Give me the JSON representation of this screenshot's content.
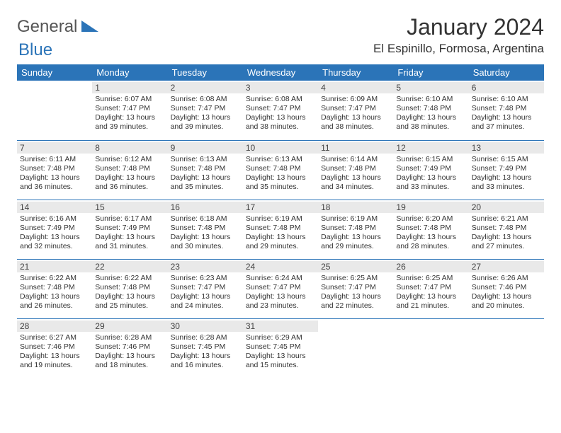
{
  "logo": {
    "primary": "General",
    "secondary": "Blue"
  },
  "title": "January 2024",
  "location": "El Espinillo, Formosa, Argentina",
  "colors": {
    "header_bg": "#2b74b8",
    "header_text": "#ffffff",
    "daynum_bg": "#e9e9e9",
    "border": "#2b74b8",
    "text": "#333333"
  },
  "day_headers": [
    "Sunday",
    "Monday",
    "Tuesday",
    "Wednesday",
    "Thursday",
    "Friday",
    "Saturday"
  ],
  "weeks": [
    [
      {
        "empty": true
      },
      {
        "day": "1",
        "sunrise": "Sunrise: 6:07 AM",
        "sunset": "Sunset: 7:47 PM",
        "daylight1": "Daylight: 13 hours",
        "daylight2": "and 39 minutes."
      },
      {
        "day": "2",
        "sunrise": "Sunrise: 6:08 AM",
        "sunset": "Sunset: 7:47 PM",
        "daylight1": "Daylight: 13 hours",
        "daylight2": "and 39 minutes."
      },
      {
        "day": "3",
        "sunrise": "Sunrise: 6:08 AM",
        "sunset": "Sunset: 7:47 PM",
        "daylight1": "Daylight: 13 hours",
        "daylight2": "and 38 minutes."
      },
      {
        "day": "4",
        "sunrise": "Sunrise: 6:09 AM",
        "sunset": "Sunset: 7:47 PM",
        "daylight1": "Daylight: 13 hours",
        "daylight2": "and 38 minutes."
      },
      {
        "day": "5",
        "sunrise": "Sunrise: 6:10 AM",
        "sunset": "Sunset: 7:48 PM",
        "daylight1": "Daylight: 13 hours",
        "daylight2": "and 38 minutes."
      },
      {
        "day": "6",
        "sunrise": "Sunrise: 6:10 AM",
        "sunset": "Sunset: 7:48 PM",
        "daylight1": "Daylight: 13 hours",
        "daylight2": "and 37 minutes."
      }
    ],
    [
      {
        "day": "7",
        "sunrise": "Sunrise: 6:11 AM",
        "sunset": "Sunset: 7:48 PM",
        "daylight1": "Daylight: 13 hours",
        "daylight2": "and 36 minutes."
      },
      {
        "day": "8",
        "sunrise": "Sunrise: 6:12 AM",
        "sunset": "Sunset: 7:48 PM",
        "daylight1": "Daylight: 13 hours",
        "daylight2": "and 36 minutes."
      },
      {
        "day": "9",
        "sunrise": "Sunrise: 6:13 AM",
        "sunset": "Sunset: 7:48 PM",
        "daylight1": "Daylight: 13 hours",
        "daylight2": "and 35 minutes."
      },
      {
        "day": "10",
        "sunrise": "Sunrise: 6:13 AM",
        "sunset": "Sunset: 7:48 PM",
        "daylight1": "Daylight: 13 hours",
        "daylight2": "and 35 minutes."
      },
      {
        "day": "11",
        "sunrise": "Sunrise: 6:14 AM",
        "sunset": "Sunset: 7:48 PM",
        "daylight1": "Daylight: 13 hours",
        "daylight2": "and 34 minutes."
      },
      {
        "day": "12",
        "sunrise": "Sunrise: 6:15 AM",
        "sunset": "Sunset: 7:49 PM",
        "daylight1": "Daylight: 13 hours",
        "daylight2": "and 33 minutes."
      },
      {
        "day": "13",
        "sunrise": "Sunrise: 6:15 AM",
        "sunset": "Sunset: 7:49 PM",
        "daylight1": "Daylight: 13 hours",
        "daylight2": "and 33 minutes."
      }
    ],
    [
      {
        "day": "14",
        "sunrise": "Sunrise: 6:16 AM",
        "sunset": "Sunset: 7:49 PM",
        "daylight1": "Daylight: 13 hours",
        "daylight2": "and 32 minutes."
      },
      {
        "day": "15",
        "sunrise": "Sunrise: 6:17 AM",
        "sunset": "Sunset: 7:49 PM",
        "daylight1": "Daylight: 13 hours",
        "daylight2": "and 31 minutes."
      },
      {
        "day": "16",
        "sunrise": "Sunrise: 6:18 AM",
        "sunset": "Sunset: 7:48 PM",
        "daylight1": "Daylight: 13 hours",
        "daylight2": "and 30 minutes."
      },
      {
        "day": "17",
        "sunrise": "Sunrise: 6:19 AM",
        "sunset": "Sunset: 7:48 PM",
        "daylight1": "Daylight: 13 hours",
        "daylight2": "and 29 minutes."
      },
      {
        "day": "18",
        "sunrise": "Sunrise: 6:19 AM",
        "sunset": "Sunset: 7:48 PM",
        "daylight1": "Daylight: 13 hours",
        "daylight2": "and 29 minutes."
      },
      {
        "day": "19",
        "sunrise": "Sunrise: 6:20 AM",
        "sunset": "Sunset: 7:48 PM",
        "daylight1": "Daylight: 13 hours",
        "daylight2": "and 28 minutes."
      },
      {
        "day": "20",
        "sunrise": "Sunrise: 6:21 AM",
        "sunset": "Sunset: 7:48 PM",
        "daylight1": "Daylight: 13 hours",
        "daylight2": "and 27 minutes."
      }
    ],
    [
      {
        "day": "21",
        "sunrise": "Sunrise: 6:22 AM",
        "sunset": "Sunset: 7:48 PM",
        "daylight1": "Daylight: 13 hours",
        "daylight2": "and 26 minutes."
      },
      {
        "day": "22",
        "sunrise": "Sunrise: 6:22 AM",
        "sunset": "Sunset: 7:48 PM",
        "daylight1": "Daylight: 13 hours",
        "daylight2": "and 25 minutes."
      },
      {
        "day": "23",
        "sunrise": "Sunrise: 6:23 AM",
        "sunset": "Sunset: 7:47 PM",
        "daylight1": "Daylight: 13 hours",
        "daylight2": "and 24 minutes."
      },
      {
        "day": "24",
        "sunrise": "Sunrise: 6:24 AM",
        "sunset": "Sunset: 7:47 PM",
        "daylight1": "Daylight: 13 hours",
        "daylight2": "and 23 minutes."
      },
      {
        "day": "25",
        "sunrise": "Sunrise: 6:25 AM",
        "sunset": "Sunset: 7:47 PM",
        "daylight1": "Daylight: 13 hours",
        "daylight2": "and 22 minutes."
      },
      {
        "day": "26",
        "sunrise": "Sunrise: 6:25 AM",
        "sunset": "Sunset: 7:47 PM",
        "daylight1": "Daylight: 13 hours",
        "daylight2": "and 21 minutes."
      },
      {
        "day": "27",
        "sunrise": "Sunrise: 6:26 AM",
        "sunset": "Sunset: 7:46 PM",
        "daylight1": "Daylight: 13 hours",
        "daylight2": "and 20 minutes."
      }
    ],
    [
      {
        "day": "28",
        "sunrise": "Sunrise: 6:27 AM",
        "sunset": "Sunset: 7:46 PM",
        "daylight1": "Daylight: 13 hours",
        "daylight2": "and 19 minutes."
      },
      {
        "day": "29",
        "sunrise": "Sunrise: 6:28 AM",
        "sunset": "Sunset: 7:46 PM",
        "daylight1": "Daylight: 13 hours",
        "daylight2": "and 18 minutes."
      },
      {
        "day": "30",
        "sunrise": "Sunrise: 6:28 AM",
        "sunset": "Sunset: 7:45 PM",
        "daylight1": "Daylight: 13 hours",
        "daylight2": "and 16 minutes."
      },
      {
        "day": "31",
        "sunrise": "Sunrise: 6:29 AM",
        "sunset": "Sunset: 7:45 PM",
        "daylight1": "Daylight: 13 hours",
        "daylight2": "and 15 minutes."
      },
      {
        "empty": true
      },
      {
        "empty": true
      },
      {
        "empty": true
      }
    ]
  ]
}
